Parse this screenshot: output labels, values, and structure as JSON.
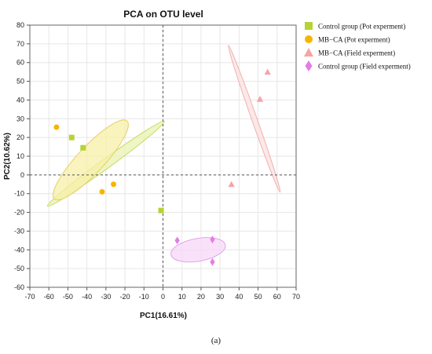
{
  "caption": "(a)",
  "chart_data": {
    "type": "scatter",
    "title": "PCA on OTU level",
    "xlabel": "PC1(16.61%)",
    "ylabel": "PC2(10.62%)",
    "xlim": [
      -70,
      70
    ],
    "ylim": [
      -60,
      80
    ],
    "xticks": [
      -70,
      -60,
      -50,
      -40,
      -30,
      -20,
      -10,
      0,
      10,
      20,
      30,
      40,
      50,
      60,
      70
    ],
    "yticks": [
      80,
      70,
      60,
      50,
      40,
      30,
      20,
      10,
      0,
      -10,
      -20,
      -30,
      -40,
      -50,
      -60
    ],
    "grid": true,
    "zero_lines": "dashed",
    "legend_position": "top-right",
    "series": [
      {
        "name": "Control group (Pot experment)",
        "marker": "square",
        "color": "#b5d334",
        "points": [
          [
            -48,
            20
          ],
          [
            -42,
            14.5
          ],
          [
            -1,
            -19
          ]
        ],
        "ellipse": {
          "cx": -30,
          "cy": 6,
          "rx": 38,
          "ry": 2.5,
          "angle_deg": -36,
          "fill": "#eaf2b0",
          "stroke": "#c8dc5a"
        }
      },
      {
        "name": "MB−CA (Pot experment)",
        "marker": "circle",
        "color": "#f7b500",
        "points": [
          [
            -56,
            25.5
          ],
          [
            -32,
            -9
          ],
          [
            -26,
            -5
          ]
        ],
        "ellipse": {
          "cx": -38,
          "cy": 8,
          "rx": 28,
          "ry": 7,
          "angle_deg": -47,
          "fill": "#f7efa8",
          "stroke": "#e6d16a"
        }
      },
      {
        "name": "MB−CA  (Field experment)",
        "marker": "triangle",
        "color": "#f3a6a6",
        "points": [
          [
            36,
            -5
          ],
          [
            51,
            40.5
          ],
          [
            55,
            55
          ]
        ],
        "ellipse": {
          "cx": 48,
          "cy": 30,
          "rx": 41,
          "ry": 1.4,
          "angle_deg": 70.6,
          "fill": "#fbe0e0",
          "stroke": "#f2b0b0"
        }
      },
      {
        "name": "Control group (Field experment)",
        "marker": "diamond",
        "color": "#e47ce8",
        "points": [
          [
            7.5,
            -35
          ],
          [
            26,
            -34.5
          ],
          [
            26,
            -46.5
          ]
        ],
        "ellipse": {
          "cx": 18.5,
          "cy": -40,
          "rx": 14.5,
          "ry": 6,
          "angle_deg": -10,
          "fill": "#f7d8f7",
          "stroke": "#e2a4e6"
        }
      }
    ]
  }
}
